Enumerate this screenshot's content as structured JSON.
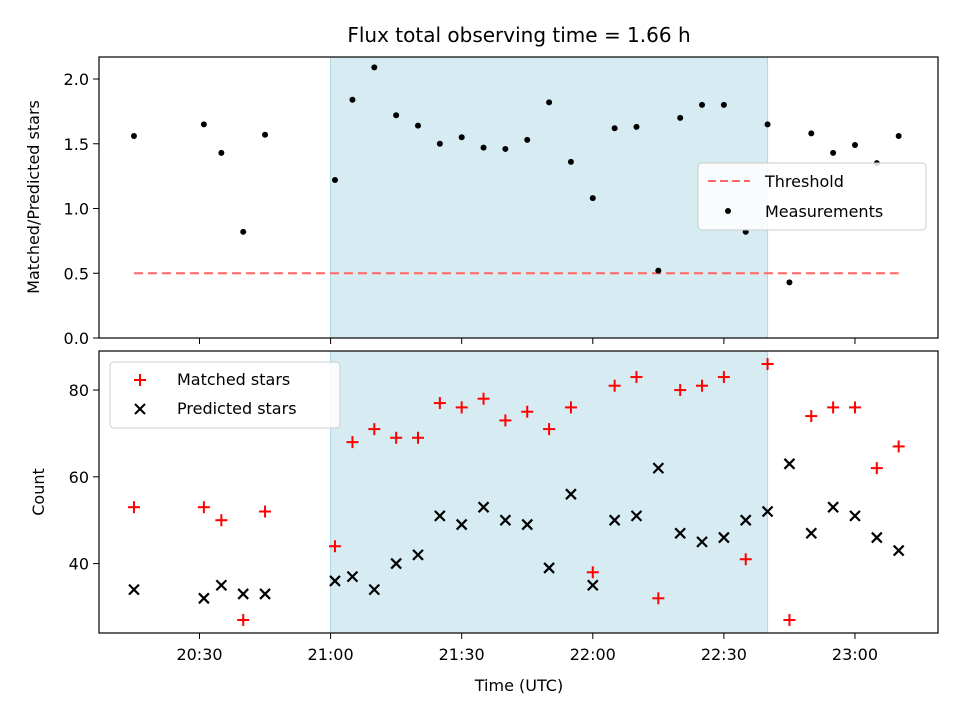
{
  "chart_data": [
    {
      "type": "scatter",
      "title": "Flux total observing time = 1.66 h",
      "ylabel": "Matched/Predicted stars",
      "xlabel": "",
      "ylim": [
        0,
        2.17
      ],
      "yticks": [
        "0.0",
        "0.5",
        "1.0",
        "1.5",
        "2.0"
      ],
      "ytick_values": [
        0,
        0.5,
        1.0,
        1.5,
        2.0
      ],
      "shaded_span": {
        "start": "21:00",
        "end": "22:40",
        "color": "#add8e6"
      },
      "threshold": {
        "name": "Threshold",
        "value": 0.5,
        "x_start": "20:15",
        "x_end": "23:10",
        "color": "#ff6666"
      },
      "legend": {
        "position": "center-right",
        "entries": [
          "Threshold",
          "Measurements"
        ]
      },
      "series": [
        {
          "name": "Measurements",
          "color": "#000000",
          "x": [
            "20:15",
            "20:31",
            "20:35",
            "20:40",
            "20:45",
            "21:01",
            "21:05",
            "21:10",
            "21:15",
            "21:20",
            "21:25",
            "21:30",
            "21:35",
            "21:40",
            "21:45",
            "21:50",
            "21:55",
            "22:00",
            "22:05",
            "22:10",
            "22:15",
            "22:20",
            "22:25",
            "22:30",
            "22:35",
            "22:40",
            "22:45",
            "22:50",
            "22:55",
            "23:00",
            "23:05",
            "23:10"
          ],
          "y": [
            1.56,
            1.65,
            1.43,
            0.82,
            1.57,
            1.22,
            1.84,
            2.09,
            1.72,
            1.64,
            1.5,
            1.55,
            1.47,
            1.46,
            1.53,
            1.82,
            1.36,
            1.08,
            1.62,
            1.63,
            0.52,
            1.7,
            1.8,
            1.8,
            0.82,
            1.65,
            0.43,
            1.58,
            1.43,
            1.49,
            1.35,
            1.56
          ]
        }
      ]
    },
    {
      "type": "scatter",
      "title": "",
      "ylabel": "Count",
      "xlabel": "Time (UTC)",
      "ylim": [
        24,
        89
      ],
      "yticks": [
        "40",
        "60",
        "80"
      ],
      "ytick_values": [
        40,
        60,
        80
      ],
      "xlim": [
        "20:07",
        "23:19"
      ],
      "xticks": [
        "20:30",
        "21:00",
        "21:30",
        "22:00",
        "22:30",
        "23:00"
      ],
      "shaded_span": {
        "start": "21:00",
        "end": "22:40",
        "color": "#add8e6"
      },
      "legend": {
        "position": "upper-left",
        "entries": [
          "Matched stars",
          "Predicted stars"
        ]
      },
      "series": [
        {
          "name": "Matched stars",
          "marker": "+",
          "color": "#ff0000",
          "x": [
            "20:15",
            "20:31",
            "20:35",
            "20:40",
            "20:45",
            "21:01",
            "21:05",
            "21:10",
            "21:15",
            "21:20",
            "21:25",
            "21:30",
            "21:35",
            "21:40",
            "21:45",
            "21:50",
            "21:55",
            "22:00",
            "22:05",
            "22:10",
            "22:15",
            "22:20",
            "22:25",
            "22:30",
            "22:35",
            "22:40",
            "22:45",
            "22:50",
            "22:55",
            "23:00",
            "23:05",
            "23:10"
          ],
          "y": [
            53,
            53,
            50,
            27,
            52,
            44,
            68,
            71,
            69,
            69,
            77,
            76,
            78,
            73,
            75,
            71,
            76,
            38,
            81,
            83,
            32,
            80,
            81,
            83,
            41,
            86,
            27,
            74,
            76,
            76,
            62,
            67
          ]
        },
        {
          "name": "Predicted stars",
          "marker": "x",
          "color": "#000000",
          "x": [
            "20:15",
            "20:31",
            "20:35",
            "20:40",
            "20:45",
            "21:01",
            "21:05",
            "21:10",
            "21:15",
            "21:20",
            "21:25",
            "21:30",
            "21:35",
            "21:40",
            "21:45",
            "21:50",
            "21:55",
            "22:00",
            "22:05",
            "22:10",
            "22:15",
            "22:20",
            "22:25",
            "22:30",
            "22:35",
            "22:40",
            "22:45",
            "22:50",
            "22:55",
            "23:00",
            "23:05",
            "23:10"
          ],
          "y": [
            34,
            32,
            35,
            33,
            33,
            36,
            37,
            34,
            40,
            42,
            51,
            49,
            53,
            50,
            49,
            39,
            56,
            35,
            50,
            51,
            62,
            47,
            45,
            46,
            50,
            52,
            63,
            47,
            53,
            51,
            46,
            43
          ]
        }
      ]
    }
  ]
}
